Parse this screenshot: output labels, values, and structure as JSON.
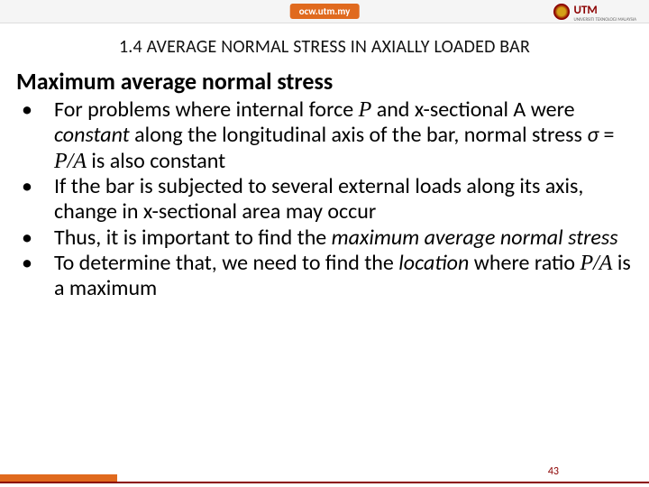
{
  "topbar": {
    "ocw": "ocw.utm.my",
    "logo_text": "UTM",
    "logo_sub": "UNIVERSITI TEKNOLOGI MALAYSIA"
  },
  "section_title": "1.4 AVERAGE NORMAL STRESS IN AXIALLY LOADED BAR",
  "heading": "Maximum average normal stress",
  "bullets": [
    {
      "pre": "For problems where internal force ",
      "sym1": "P",
      "mid1": " and x-sectional A were ",
      "em1": "constant",
      "mid2": " along the longitudinal axis of the bar, normal stress ",
      "sigma": "σ",
      "mid3": " = ",
      "sym2": "P/A",
      "post": " is also constant"
    },
    {
      "pre": "If the bar is subjected to several external loads along its axis, change in x-sectional area may occur"
    },
    {
      "pre": "Thus, it is important to find the ",
      "em1": "maximum average normal stress"
    },
    {
      "pre": "To determine that, we need to find the ",
      "em1": "location",
      "mid1": " where ratio ",
      "sym1": "P/A",
      "post": " is a maximum"
    }
  ],
  "page_number": "43",
  "colors": {
    "accent": "#e06a1e",
    "rule": "#8b0000"
  }
}
